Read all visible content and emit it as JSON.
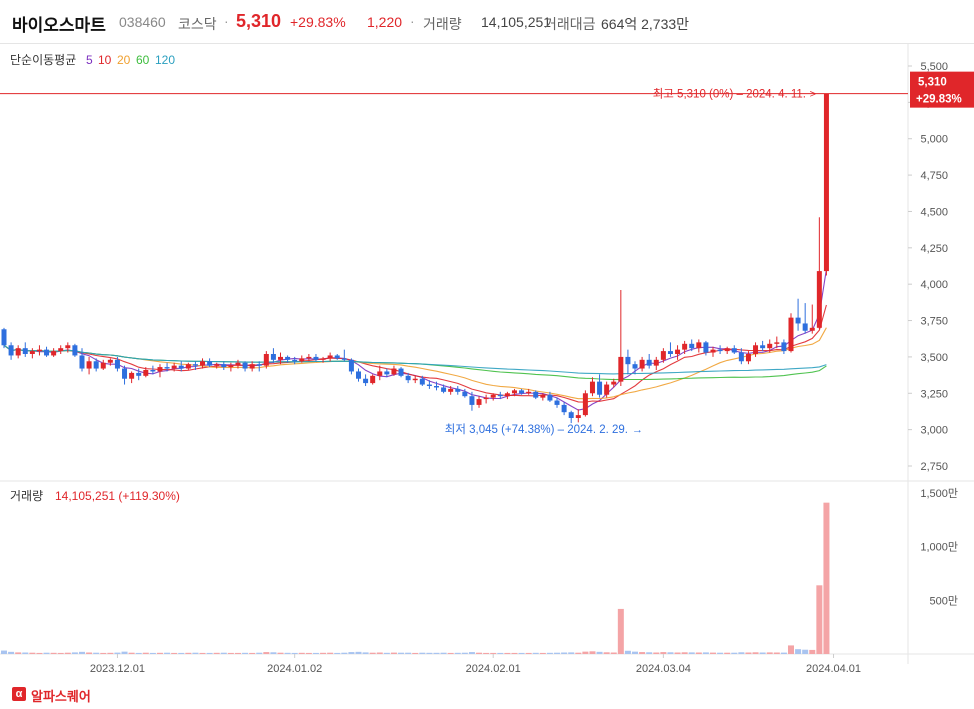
{
  "header": {
    "name": "바이오스마트",
    "code": "038460",
    "market": "코스닥",
    "dot": "·",
    "price": "5,310",
    "change_rate": "+29.83%",
    "change": "1,220",
    "volume_label": "거래량",
    "volume_value": "14,105,251",
    "amount_label": "거래대금",
    "amount_value": "664억 2,733만"
  },
  "legend": {
    "title": "단순이동평균",
    "items": [
      {
        "label": "5",
        "color": "#7b2fbf"
      },
      {
        "label": "10",
        "color": "#e0262a"
      },
      {
        "label": "20",
        "color": "#f0a030"
      },
      {
        "label": "60",
        "color": "#3dbd3d"
      },
      {
        "label": "120",
        "color": "#2a9fbf"
      }
    ]
  },
  "price_tag": {
    "price": "5,310",
    "rate": "+29.83%"
  },
  "high_annotation": "최고 5,310 (0%) – 2024. 4. 11.",
  "low_annotation": "최저 3,045 (+74.38%) – 2024. 2. 29.",
  "volume_panel": {
    "label": "거래량",
    "value": "14,105,251 (+119.30%)"
  },
  "footer": {
    "logo_mark": "α",
    "brand": "알파스퀘어"
  },
  "colors": {
    "up": "#e0262a",
    "down": "#2e6fde",
    "vol_up": "#f4a4a6",
    "vol_down": "#a9c4f0"
  },
  "chart_data": {
    "type": "candlestick",
    "price_axis": {
      "range": [
        2750,
        5500
      ],
      "ticks": [
        "5,500",
        "5,250",
        "5,000",
        "4,750",
        "4,500",
        "4,250",
        "4,000",
        "3,750",
        "3,500",
        "3,250",
        "3,000",
        "2,750"
      ]
    },
    "volume_axis": {
      "unit": "만",
      "range": [
        0,
        1500
      ],
      "ticks": [
        "1,500만",
        "1,000만",
        "500만"
      ]
    },
    "x_ticks": [
      "2023.12.01",
      "2024.01.02",
      "2024.02.01",
      "2024.03.04",
      "2024.04.01"
    ],
    "candles": [
      [
        3690,
        3700,
        3560,
        3580,
        32
      ],
      [
        3580,
        3600,
        3480,
        3510,
        20
      ],
      [
        3510,
        3580,
        3490,
        3560,
        15
      ],
      [
        3560,
        3600,
        3500,
        3520,
        14
      ],
      [
        3520,
        3560,
        3490,
        3540,
        12
      ],
      [
        3540,
        3580,
        3510,
        3550,
        10
      ],
      [
        3550,
        3570,
        3500,
        3510,
        12
      ],
      [
        3510,
        3560,
        3500,
        3540,
        11
      ],
      [
        3540,
        3580,
        3520,
        3560,
        10
      ],
      [
        3560,
        3600,
        3530,
        3580,
        12
      ],
      [
        3580,
        3590,
        3500,
        3510,
        15
      ],
      [
        3510,
        3560,
        3400,
        3420,
        20
      ],
      [
        3420,
        3500,
        3380,
        3470,
        14
      ],
      [
        3470,
        3490,
        3400,
        3420,
        12
      ],
      [
        3420,
        3480,
        3410,
        3460,
        10
      ],
      [
        3460,
        3490,
        3440,
        3480,
        11
      ],
      [
        3480,
        3500,
        3400,
        3420,
        13
      ],
      [
        3420,
        3440,
        3310,
        3350,
        22
      ],
      [
        3350,
        3400,
        3320,
        3390,
        12
      ],
      [
        3390,
        3420,
        3340,
        3370,
        10
      ],
      [
        3370,
        3430,
        3360,
        3410,
        12
      ],
      [
        3410,
        3440,
        3380,
        3400,
        10
      ],
      [
        3400,
        3450,
        3360,
        3430,
        11
      ],
      [
        3430,
        3460,
        3400,
        3420,
        12
      ],
      [
        3420,
        3460,
        3400,
        3440,
        10
      ],
      [
        3440,
        3470,
        3400,
        3420,
        10
      ],
      [
        3420,
        3460,
        3410,
        3450,
        11
      ],
      [
        3450,
        3470,
        3410,
        3440,
        12
      ],
      [
        3440,
        3490,
        3420,
        3470,
        10
      ],
      [
        3470,
        3490,
        3430,
        3440,
        10
      ],
      [
        3440,
        3460,
        3420,
        3450,
        11
      ],
      [
        3450,
        3470,
        3410,
        3430,
        12
      ],
      [
        3430,
        3460,
        3400,
        3440,
        10
      ],
      [
        3440,
        3480,
        3420,
        3460,
        10
      ],
      [
        3460,
        3470,
        3400,
        3420,
        11
      ],
      [
        3420,
        3470,
        3400,
        3450,
        10
      ],
      [
        3450,
        3470,
        3400,
        3440,
        12
      ],
      [
        3440,
        3540,
        3420,
        3520,
        18
      ],
      [
        3520,
        3560,
        3460,
        3480,
        16
      ],
      [
        3480,
        3530,
        3450,
        3500,
        12
      ],
      [
        3500,
        3510,
        3460,
        3480,
        11
      ],
      [
        3480,
        3500,
        3450,
        3470,
        10
      ],
      [
        3470,
        3510,
        3460,
        3490,
        11
      ],
      [
        3490,
        3520,
        3470,
        3500,
        10
      ],
      [
        3500,
        3520,
        3470,
        3480,
        10
      ],
      [
        3480,
        3500,
        3460,
        3490,
        11
      ],
      [
        3490,
        3530,
        3470,
        3510,
        12
      ],
      [
        3510,
        3520,
        3480,
        3490,
        10
      ],
      [
        3490,
        3550,
        3470,
        3480,
        12
      ],
      [
        3480,
        3490,
        3380,
        3400,
        18
      ],
      [
        3400,
        3420,
        3330,
        3350,
        20
      ],
      [
        3350,
        3380,
        3300,
        3320,
        15
      ],
      [
        3320,
        3380,
        3310,
        3370,
        12
      ],
      [
        3370,
        3440,
        3340,
        3400,
        14
      ],
      [
        3400,
        3420,
        3360,
        3380,
        11
      ],
      [
        3380,
        3440,
        3370,
        3420,
        13
      ],
      [
        3420,
        3430,
        3360,
        3370,
        12
      ],
      [
        3370,
        3390,
        3320,
        3340,
        12
      ],
      [
        3340,
        3370,
        3320,
        3350,
        10
      ],
      [
        3350,
        3370,
        3300,
        3310,
        12
      ],
      [
        3310,
        3340,
        3280,
        3300,
        11
      ],
      [
        3300,
        3330,
        3270,
        3290,
        11
      ],
      [
        3290,
        3310,
        3250,
        3260,
        12
      ],
      [
        3260,
        3300,
        3240,
        3280,
        10
      ],
      [
        3280,
        3300,
        3240,
        3260,
        11
      ],
      [
        3260,
        3280,
        3220,
        3230,
        12
      ],
      [
        3230,
        3260,
        3130,
        3170,
        18
      ],
      [
        3170,
        3230,
        3150,
        3210,
        12
      ],
      [
        3210,
        3240,
        3180,
        3220,
        10
      ],
      [
        3220,
        3250,
        3200,
        3240,
        10
      ],
      [
        3240,
        3260,
        3210,
        3230,
        10
      ],
      [
        3230,
        3260,
        3210,
        3250,
        10
      ],
      [
        3250,
        3280,
        3230,
        3270,
        10
      ],
      [
        3270,
        3280,
        3240,
        3250,
        10
      ],
      [
        3250,
        3280,
        3240,
        3260,
        10
      ],
      [
        3260,
        3270,
        3210,
        3220,
        11
      ],
      [
        3220,
        3250,
        3200,
        3240,
        10
      ],
      [
        3240,
        3260,
        3190,
        3200,
        11
      ],
      [
        3200,
        3220,
        3150,
        3170,
        12
      ],
      [
        3170,
        3190,
        3100,
        3120,
        14
      ],
      [
        3120,
        3130,
        3045,
        3080,
        15
      ],
      [
        3080,
        3140,
        3050,
        3100,
        12
      ],
      [
        3100,
        3270,
        3090,
        3250,
        22
      ],
      [
        3250,
        3360,
        3230,
        3330,
        25
      ],
      [
        3330,
        3380,
        3220,
        3240,
        20
      ],
      [
        3240,
        3330,
        3220,
        3310,
        16
      ],
      [
        3310,
        3350,
        3290,
        3330,
        14
      ],
      [
        3330,
        3960,
        3300,
        3500,
        420
      ],
      [
        3500,
        3550,
        3380,
        3450,
        30
      ],
      [
        3450,
        3470,
        3380,
        3420,
        22
      ],
      [
        3420,
        3500,
        3400,
        3480,
        18
      ],
      [
        3480,
        3520,
        3420,
        3440,
        16
      ],
      [
        3440,
        3500,
        3410,
        3480,
        14
      ],
      [
        3480,
        3560,
        3460,
        3540,
        18
      ],
      [
        3540,
        3600,
        3500,
        3520,
        16
      ],
      [
        3520,
        3580,
        3480,
        3550,
        14
      ],
      [
        3550,
        3610,
        3520,
        3590,
        16
      ],
      [
        3590,
        3620,
        3540,
        3560,
        15
      ],
      [
        3560,
        3620,
        3530,
        3600,
        14
      ],
      [
        3600,
        3610,
        3510,
        3530,
        15
      ],
      [
        3530,
        3570,
        3500,
        3550,
        13
      ],
      [
        3550,
        3580,
        3520,
        3540,
        12
      ],
      [
        3540,
        3570,
        3520,
        3560,
        12
      ],
      [
        3560,
        3580,
        3520,
        3530,
        12
      ],
      [
        3530,
        3560,
        3450,
        3470,
        16
      ],
      [
        3470,
        3540,
        3450,
        3520,
        14
      ],
      [
        3520,
        3600,
        3500,
        3580,
        16
      ],
      [
        3580,
        3610,
        3540,
        3560,
        14
      ],
      [
        3560,
        3620,
        3530,
        3590,
        15
      ],
      [
        3590,
        3640,
        3560,
        3600,
        14
      ],
      [
        3600,
        3620,
        3520,
        3540,
        13
      ],
      [
        3540,
        3800,
        3530,
        3770,
        80
      ],
      [
        3770,
        3900,
        3680,
        3730,
        45
      ],
      [
        3730,
        3870,
        3660,
        3680,
        40
      ],
      [
        3680,
        3860,
        3660,
        3700,
        38
      ],
      [
        3700,
        4460,
        3690,
        4090,
        640
      ],
      [
        4090,
        5310,
        4060,
        5310,
        1410
      ]
    ]
  }
}
